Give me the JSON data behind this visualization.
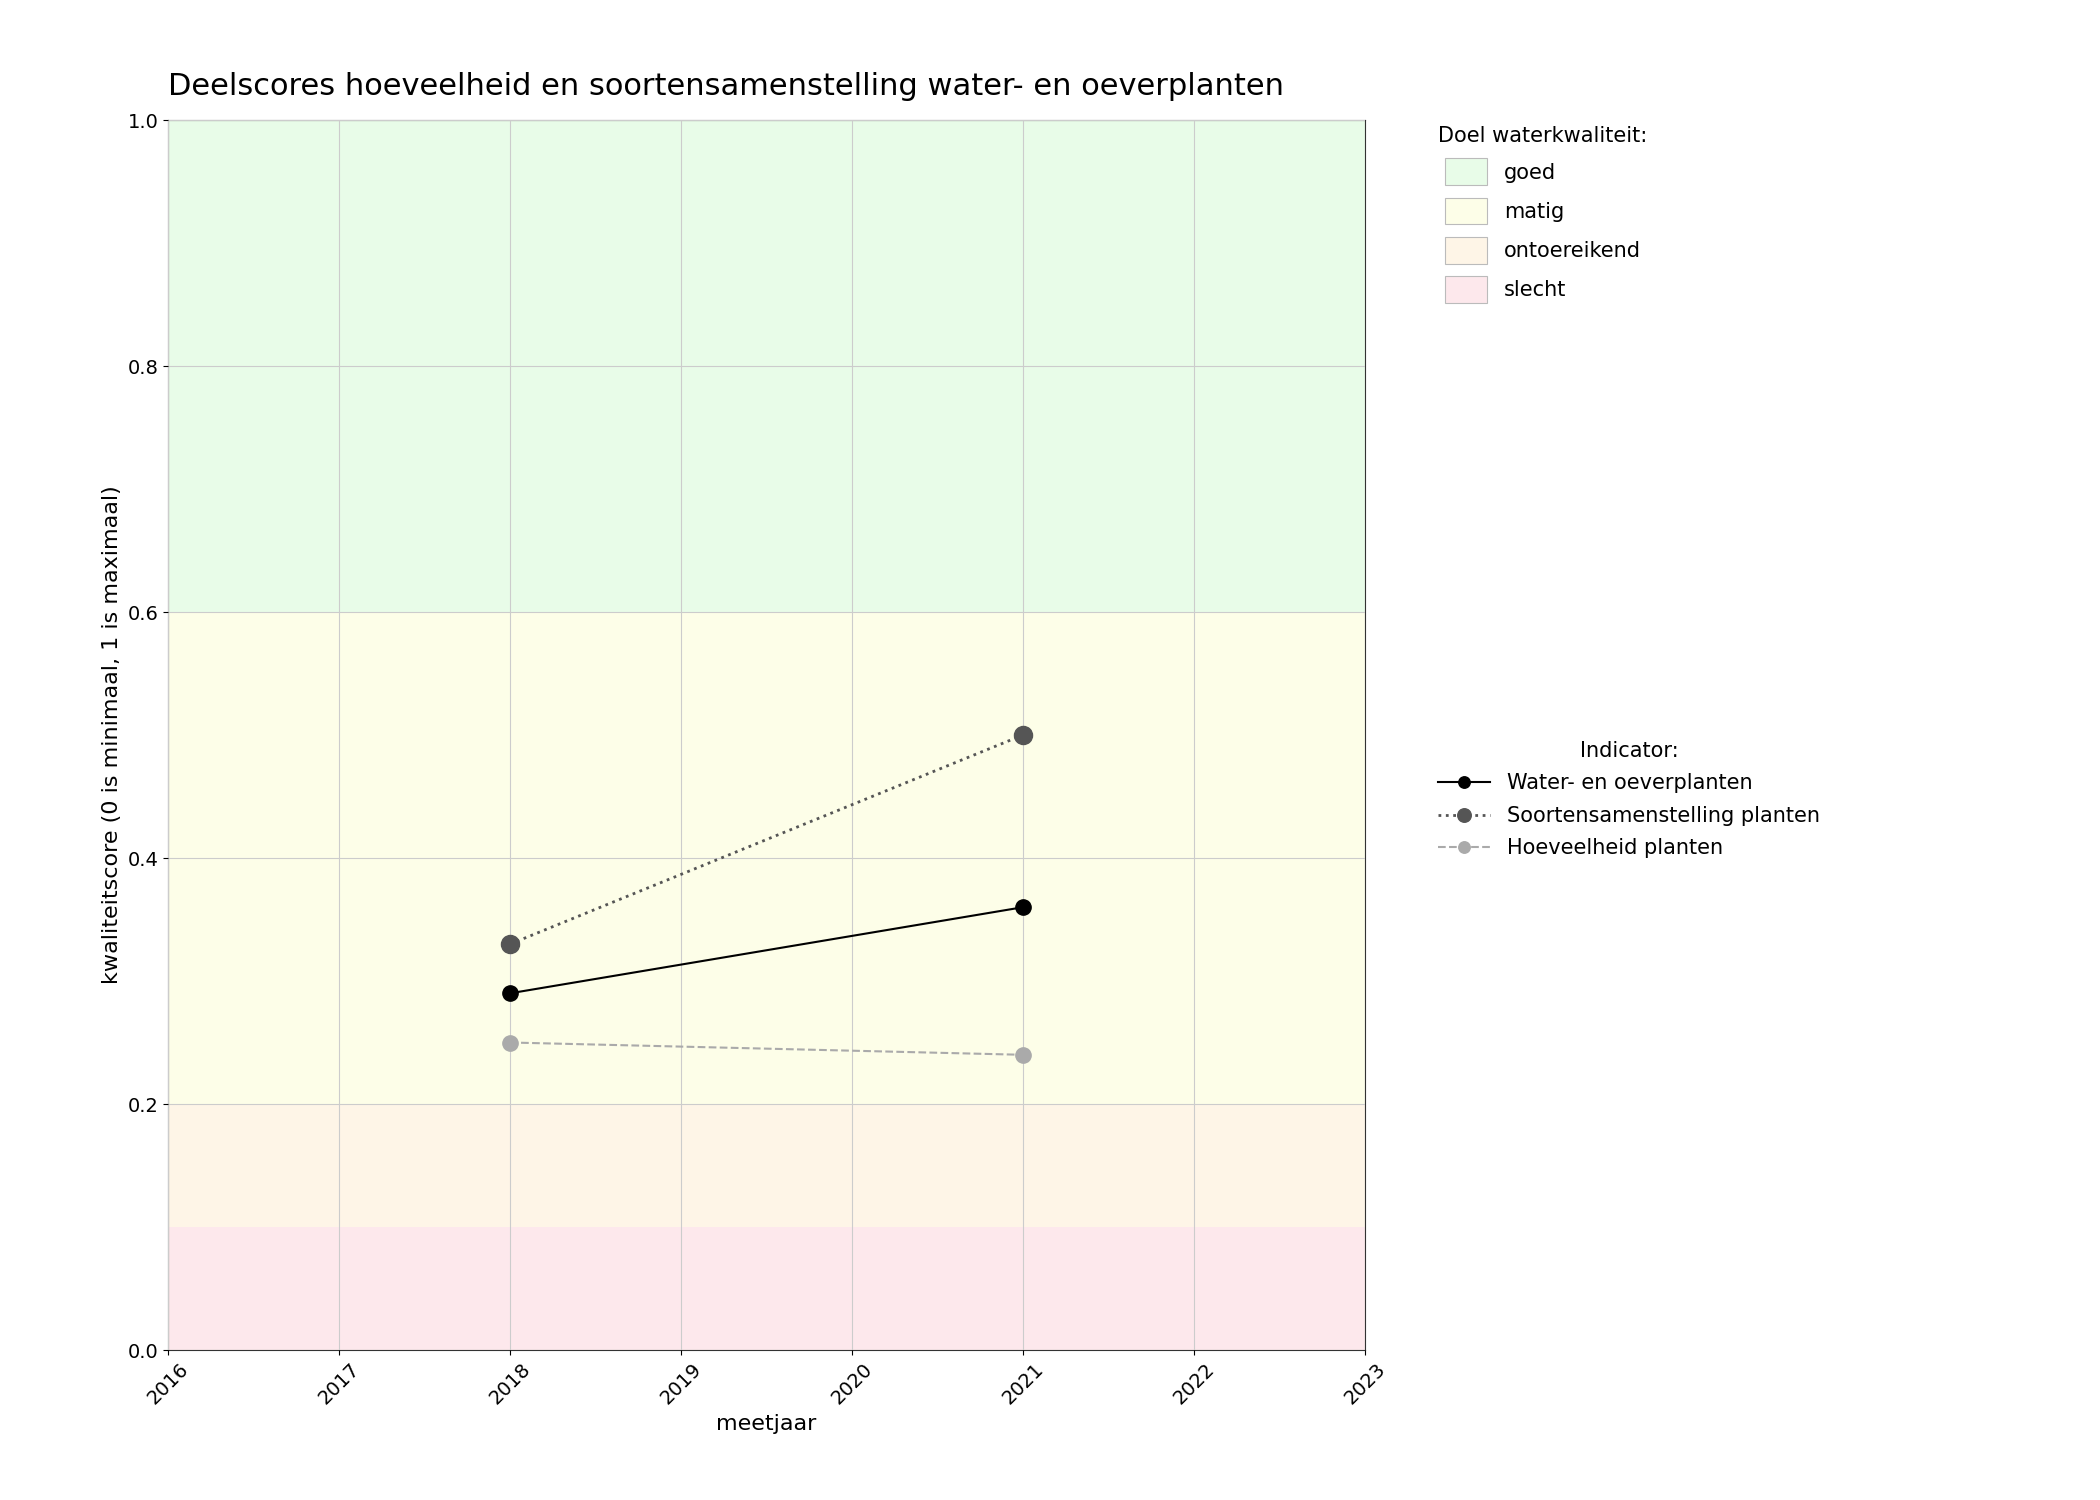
{
  "title": "Deelscores hoeveelheid en soortensamenstelling water- en oeverplanten",
  "xlabel": "meetjaar",
  "ylabel": "kwaliteitscore (0 is minimaal, 1 is maximaal)",
  "xlim": [
    2016,
    2023
  ],
  "ylim": [
    0.0,
    1.0
  ],
  "xticks": [
    2016,
    2017,
    2018,
    2019,
    2020,
    2021,
    2022,
    2023
  ],
  "yticks": [
    0.0,
    0.2,
    0.4,
    0.6,
    0.8,
    1.0
  ],
  "bg_zones": [
    {
      "ymin": 0.6,
      "ymax": 1.0,
      "color": "#e8fce8",
      "label": "goed"
    },
    {
      "ymin": 0.2,
      "ymax": 0.6,
      "color": "#fdfee8",
      "label": "matig"
    },
    {
      "ymin": 0.1,
      "ymax": 0.2,
      "color": "#fef5e7",
      "label": "ontoereikend"
    },
    {
      "ymin": 0.0,
      "ymax": 0.1,
      "color": "#fde8ec",
      "label": "slecht"
    }
  ],
  "series": [
    {
      "label": "Water- en oeverplanten",
      "x": [
        2018,
        2021
      ],
      "y": [
        0.29,
        0.36
      ],
      "color": "#000000",
      "linestyle": "solid",
      "linewidth": 1.5,
      "markersize": 11,
      "marker": "o",
      "zorder": 5
    },
    {
      "label": "Soortensamenstelling planten",
      "x": [
        2018,
        2021
      ],
      "y": [
        0.33,
        0.5
      ],
      "color": "#555555",
      "linestyle": "dotted",
      "linewidth": 2.0,
      "markersize": 13,
      "marker": "o",
      "zorder": 4
    },
    {
      "label": "Hoeveelheid planten",
      "x": [
        2018,
        2021
      ],
      "y": [
        0.25,
        0.24
      ],
      "color": "#aaaaaa",
      "linestyle": "dashed",
      "linewidth": 1.5,
      "markersize": 11,
      "marker": "o",
      "zorder": 3
    }
  ],
  "legend_doel_title": "Doel waterkwaliteit:",
  "legend_indicator_title": "Indicator:",
  "background_color": "#ffffff",
  "grid_color": "#cccccc",
  "grid_linewidth": 0.8,
  "title_fontsize": 22,
  "label_fontsize": 16,
  "tick_fontsize": 14,
  "legend_fontsize": 15
}
